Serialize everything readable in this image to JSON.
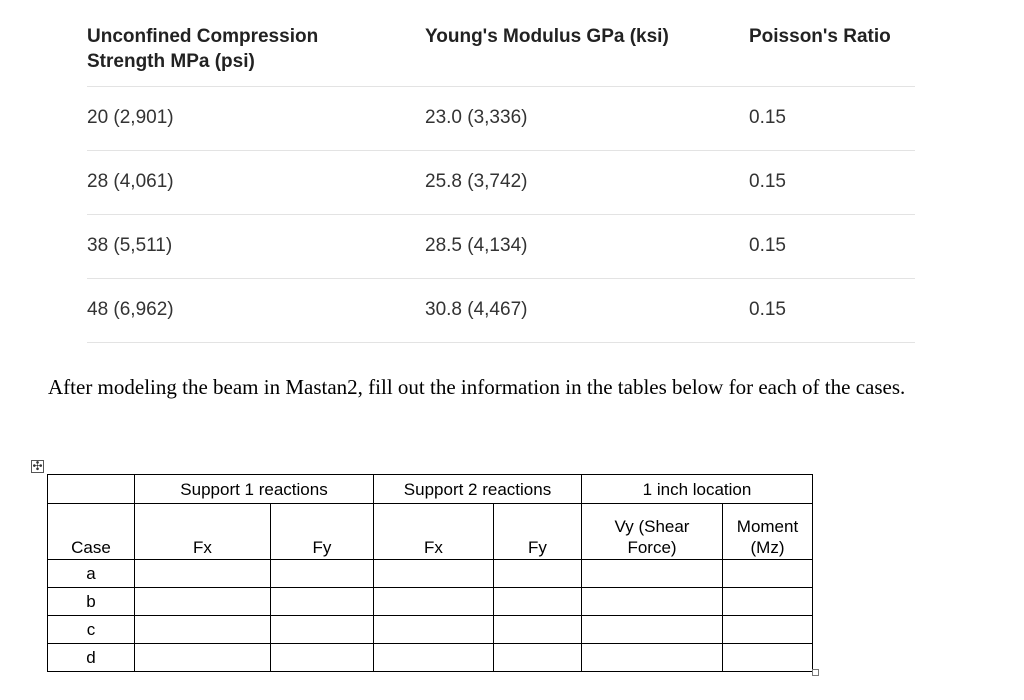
{
  "material_table": {
    "headers": [
      "Unconfined Compression\nStrength MPa (psi)",
      "Young's Modulus GPa (ksi)",
      "Poisson's Ratio"
    ],
    "rows": [
      [
        "20 (2,901)",
        "23.0 (3,336)",
        "0.15"
      ],
      [
        "28 (4,061)",
        "25.8 (3,742)",
        "0.15"
      ],
      [
        "38 (5,511)",
        "28.5 (4,134)",
        "0.15"
      ],
      [
        "48 (6,962)",
        "30.8 (4,467)",
        "0.15"
      ]
    ]
  },
  "instruction": "After modeling the beam in Mastan2, fill out the information in the tables below for each of the cases.",
  "handle_icon": "✣",
  "reactions_table": {
    "group_headers": [
      "Support 1 reactions",
      "Support 2 reactions",
      "1 inch location"
    ],
    "sub_headers": [
      "Case",
      "Fx",
      "Fy",
      "Fx",
      "Fy",
      "Vy (Shear\nForce)",
      "Moment\n(Mz)"
    ],
    "cases": [
      "a",
      "b",
      "c",
      "d"
    ]
  }
}
